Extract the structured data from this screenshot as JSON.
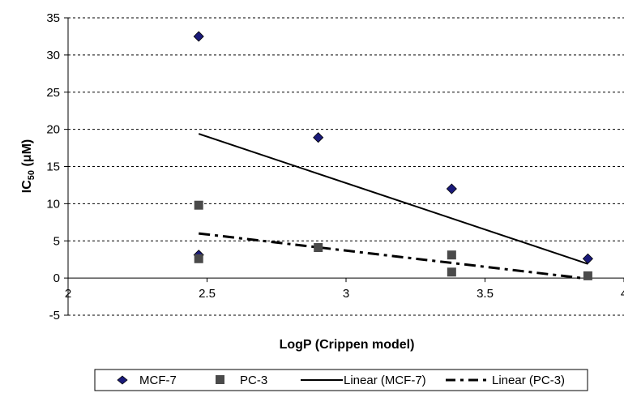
{
  "chart_data": {
    "type": "scatter",
    "xlabel": "LogP (Crippen model)",
    "ylabel": {
      "main": "IC",
      "sub": "50",
      "unit": " (μM)"
    },
    "xlim": [
      2,
      4
    ],
    "ylim": [
      -5,
      35
    ],
    "x_ticks": [
      2,
      2.5,
      3,
      3.5,
      4
    ],
    "x_tick_labels": [
      "2",
      "2.5",
      "3",
      "3.5",
      "4"
    ],
    "y_ticks": [
      -5,
      0,
      5,
      10,
      15,
      20,
      25,
      30,
      35
    ],
    "y_tick_labels": [
      "-5",
      "0",
      "5",
      "10",
      "15",
      "20",
      "25",
      "30",
      "35"
    ],
    "grid": "horizontal dashed",
    "legend_position": "bottom",
    "series": [
      {
        "name": "MCF-7",
        "marker": "diamond",
        "color": "#1a1a7a",
        "points": [
          [
            2.47,
            32.5
          ],
          [
            2.47,
            3.1
          ],
          [
            2.9,
            18.9
          ],
          [
            3.38,
            12.0
          ],
          [
            3.87,
            2.6
          ]
        ]
      },
      {
        "name": "PC-3",
        "marker": "square",
        "color": "#4a4a4a",
        "points": [
          [
            2.47,
            9.8
          ],
          [
            2.47,
            2.6
          ],
          [
            2.9,
            4.1
          ],
          [
            3.38,
            3.1
          ],
          [
            3.38,
            0.8
          ],
          [
            3.87,
            0.3
          ]
        ]
      }
    ],
    "trendlines": [
      {
        "name": "Linear (MCF-7)",
        "style": "solid",
        "color": "#000000",
        "from": [
          2.47,
          19.4
        ],
        "to": [
          3.87,
          1.9
        ]
      },
      {
        "name": "Linear (PC-3)",
        "style": "dashdot",
        "color": "#000000",
        "from": [
          2.47,
          6.0
        ],
        "to": [
          3.87,
          -0.1
        ]
      }
    ]
  }
}
